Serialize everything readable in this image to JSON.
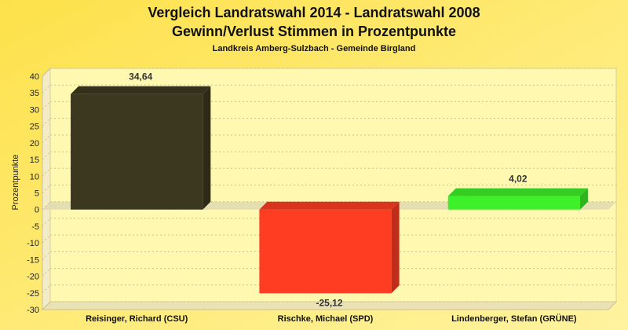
{
  "chart_data": {
    "type": "bar",
    "title": "Vergleich Landratswahl 2014 - Landratswahl 2008",
    "title2": "Gewinn/Verlust Stimmen in Prozentpunkte",
    "subtitle": "Landkreis Amberg-Sulzbach - Gemeinde Birgland",
    "xlabel": "",
    "ylabel": "Prozentpunkte",
    "ylim": [
      -30,
      40
    ],
    "yticks": [
      -30,
      -25,
      -20,
      -15,
      -10,
      -5,
      0,
      5,
      10,
      15,
      20,
      25,
      30,
      35,
      40
    ],
    "grid": true,
    "categories": [
      "Reisinger, Richard (CSU)",
      "Rischke, Michael (SPD)",
      "Lindenberger, Stefan (GRÜNE)"
    ],
    "values": [
      34.64,
      -25.12,
      4.02
    ],
    "value_labels": [
      "34,64",
      "-25,12",
      "4,02"
    ],
    "colors": [
      "#3c3820",
      "#ff3d22",
      "#3ef029"
    ]
  }
}
